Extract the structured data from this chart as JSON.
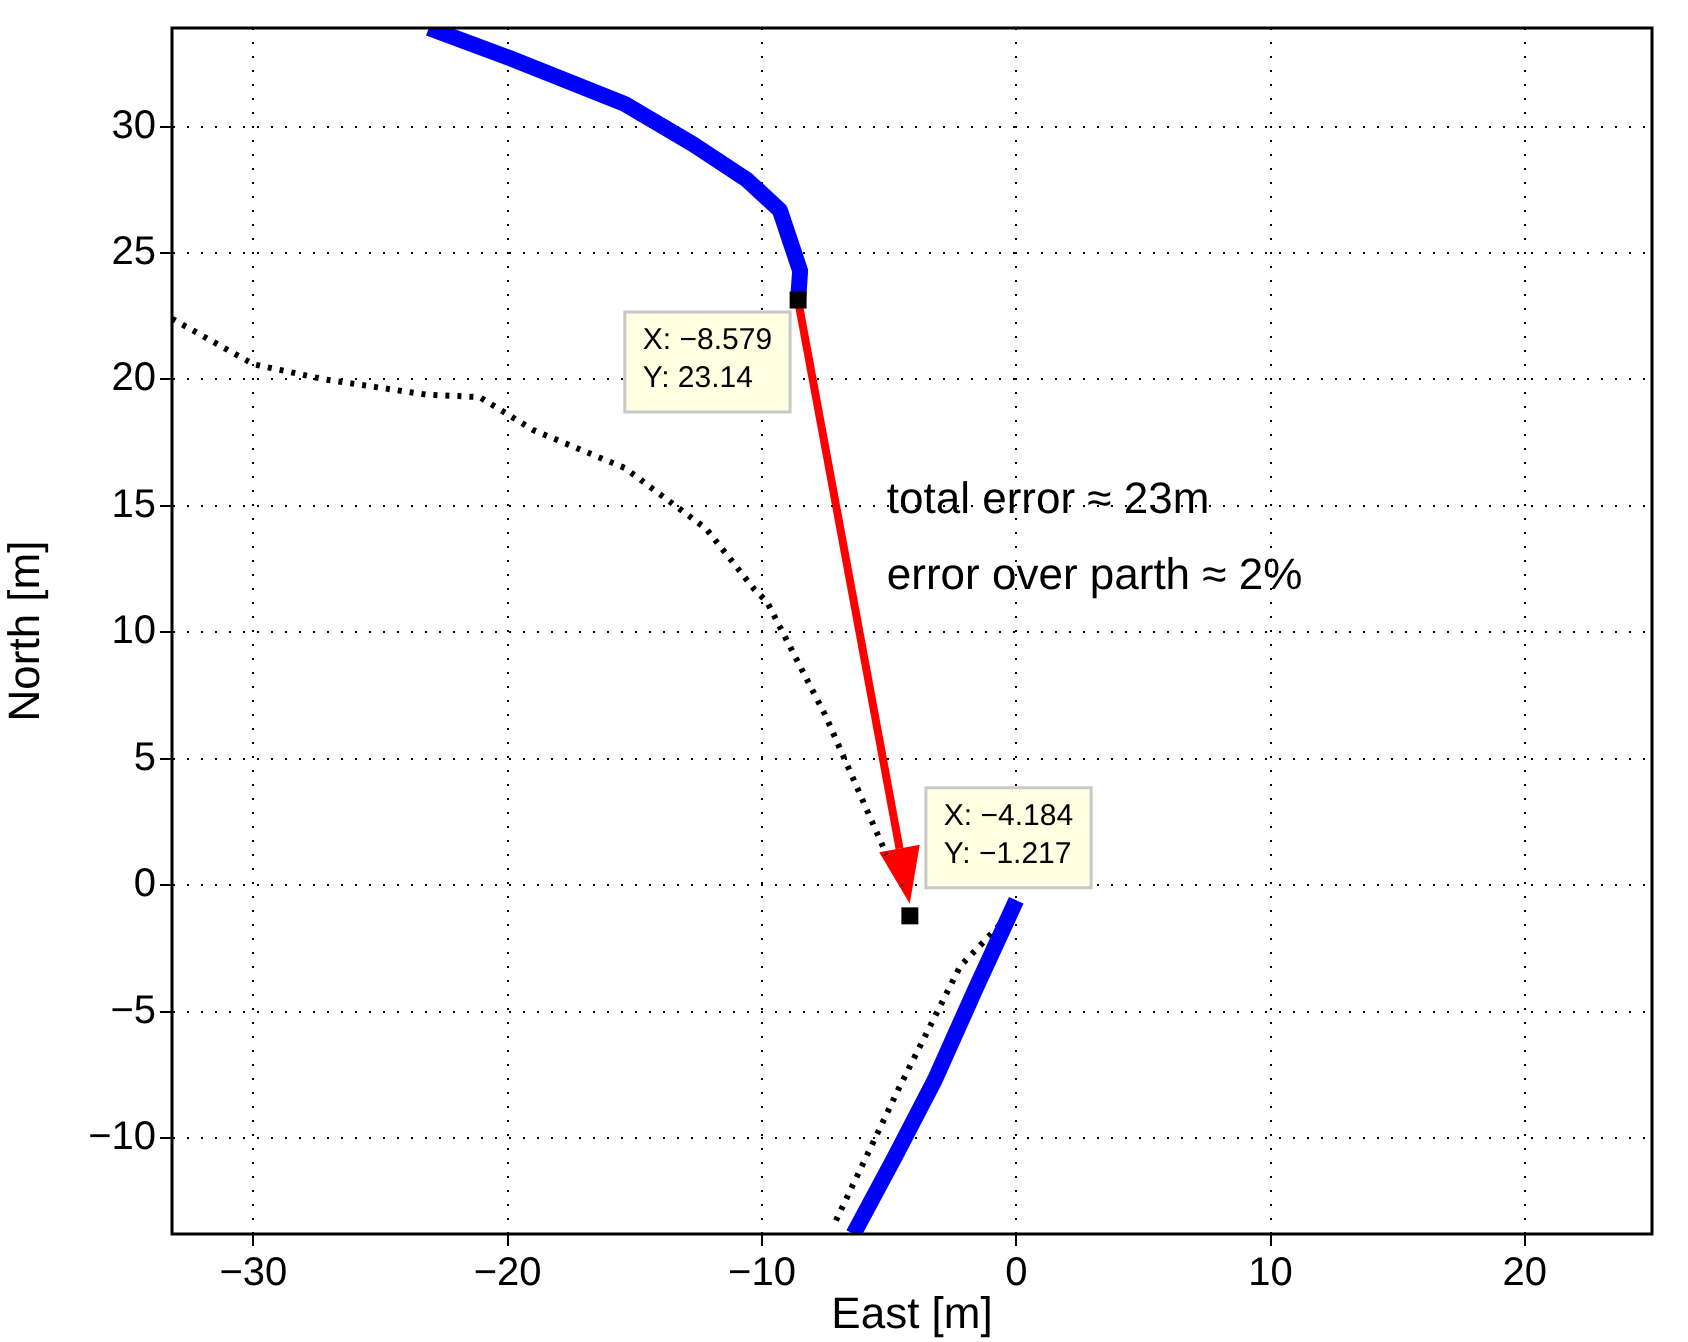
{
  "chart_data": {
    "type": "line",
    "xlabel": "East [m]",
    "ylabel": "North [m]",
    "xlim": [
      -33.2,
      25
    ],
    "ylim": [
      -13.8,
      33.9
    ],
    "xticks": [
      -30,
      -20,
      -10,
      0,
      10,
      20
    ],
    "yticks": [
      -10,
      -5,
      0,
      5,
      10,
      15,
      20,
      25,
      30
    ],
    "grid": true,
    "legend": false,
    "series": [
      {
        "color": "#0000ff",
        "line_style": "solid",
        "marker": "none",
        "x": [
          -23.1,
          -19.9,
          -15.4,
          -12.7,
          -10.6,
          -9.3,
          -8.5,
          -8.579,
          null,
          0,
          -1.6,
          -3.2,
          -4.8,
          -6.4
        ],
        "values": [
          33.9,
          32.7,
          30.9,
          29.3,
          27.9,
          26.7,
          24.3,
          23.14,
          null,
          -0.6,
          -4.1,
          -7.7,
          -10.8,
          -13.8
        ]
      },
      {
        "color": "#000000",
        "line_style": "dotted",
        "marker": "none",
        "x": [
          -33.2,
          -30,
          -27.2,
          -23.2,
          -21.1,
          -19.0,
          -15.4,
          -12.2,
          -10.3,
          -9.8,
          -7.5,
          -5.1,
          null,
          0,
          -2.2,
          -4.6,
          -7.2
        ],
        "values": [
          22.4,
          20.6,
          20.0,
          19.4,
          19.3,
          18.0,
          16.5,
          14.1,
          11.7,
          11.2,
          6.7,
          1.2,
          null,
          -0.9,
          -3.2,
          -8.0,
          -13.5
        ]
      },
      {
        "type": "scatter",
        "color": "#000000",
        "marker": "square",
        "x": [
          -8.579,
          -4.184
        ],
        "values": [
          23.14,
          -1.217
        ]
      }
    ],
    "annotations": [
      {
        "text": "X: −8.579\nY: 23.14",
        "x": -8.579,
        "y": 23.14
      },
      {
        "text": "X: −4.184\nY: −1.217",
        "x": -4.184,
        "y": -1.217
      },
      "total error ≈ 23m",
      "error over parth ≈ 2%"
    ]
  }
}
